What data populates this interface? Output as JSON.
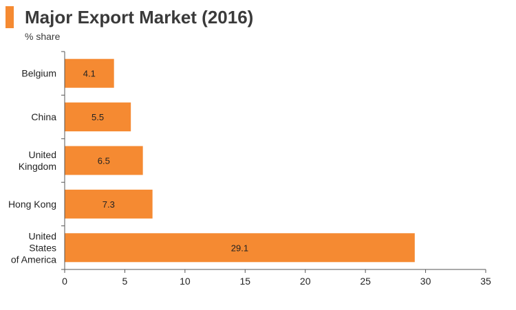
{
  "header": {
    "title": "Major Export Market (2016)",
    "subtitle": "% share"
  },
  "colors": {
    "accent": "#f58a32",
    "bar": "#f58a32",
    "axis": "#555555",
    "text": "#222222"
  },
  "chart_data": {
    "type": "bar",
    "orientation": "horizontal",
    "title": "Major Export Market (2016)",
    "subtitle": "% share",
    "categories": [
      [
        "Belgium"
      ],
      [
        "China"
      ],
      [
        "United",
        "Kingdom"
      ],
      [
        "Hong Kong"
      ],
      [
        "United",
        "States",
        "of America"
      ]
    ],
    "values": [
      4.1,
      5.5,
      6.5,
      7.3,
      29.1
    ],
    "xlim": [
      0,
      35
    ],
    "xticks": [
      0,
      5,
      10,
      15,
      20,
      25,
      30,
      35
    ],
    "xlabel": "",
    "ylabel": "",
    "grid": false
  }
}
